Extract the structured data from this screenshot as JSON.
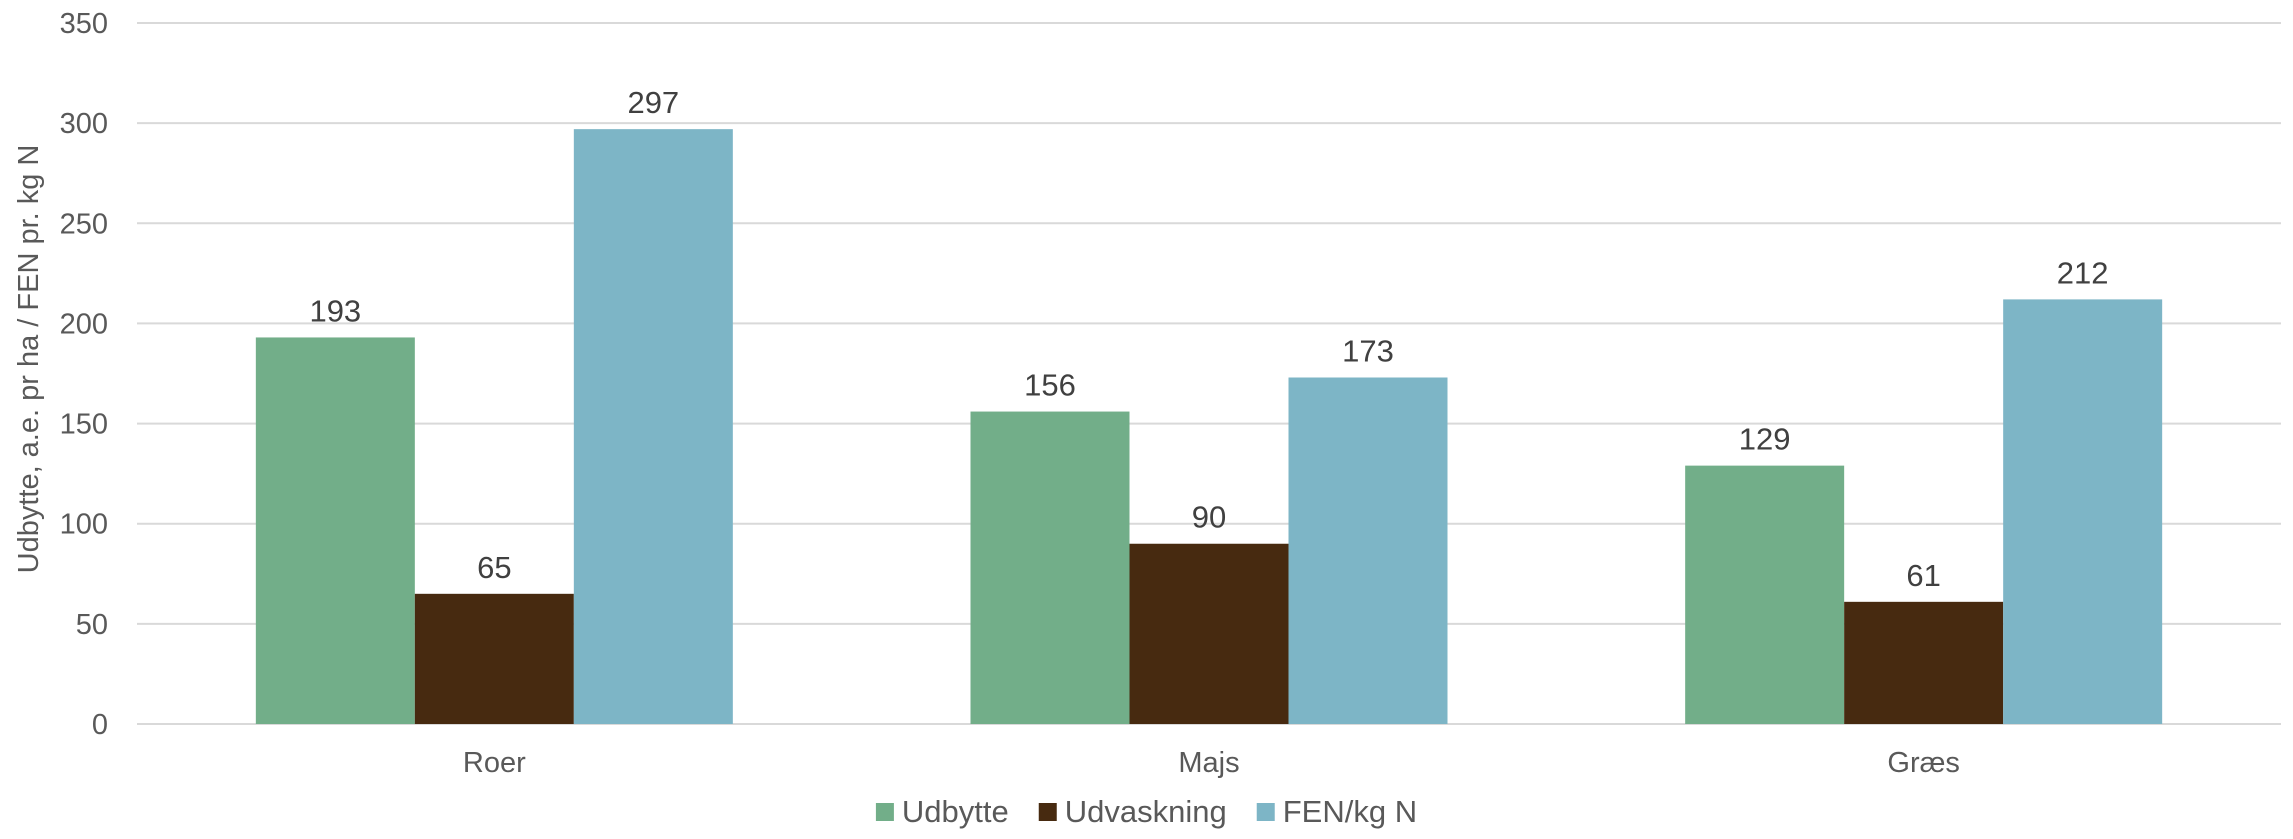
{
  "chart_data": {
    "type": "bar",
    "title": "",
    "xlabel": "",
    "ylabel": "Udbytte, a.e. pr ha / FEN pr. kg N",
    "ylim": [
      0,
      350
    ],
    "yticks": [
      0,
      50,
      100,
      150,
      200,
      250,
      300,
      350
    ],
    "grid": true,
    "legend_position": "bottom",
    "categories": [
      "Roer",
      "Majs",
      "Græs"
    ],
    "series": [
      {
        "name": "Udbytte",
        "color": "#72ae89",
        "values": [
          193,
          156,
          129
        ]
      },
      {
        "name": "Udvaskning",
        "color": "#472a10",
        "values": [
          65,
          90,
          61
        ]
      },
      {
        "name": "FEN/kg N",
        "color": "#7db5c6",
        "values": [
          297,
          173,
          212
        ]
      }
    ]
  }
}
